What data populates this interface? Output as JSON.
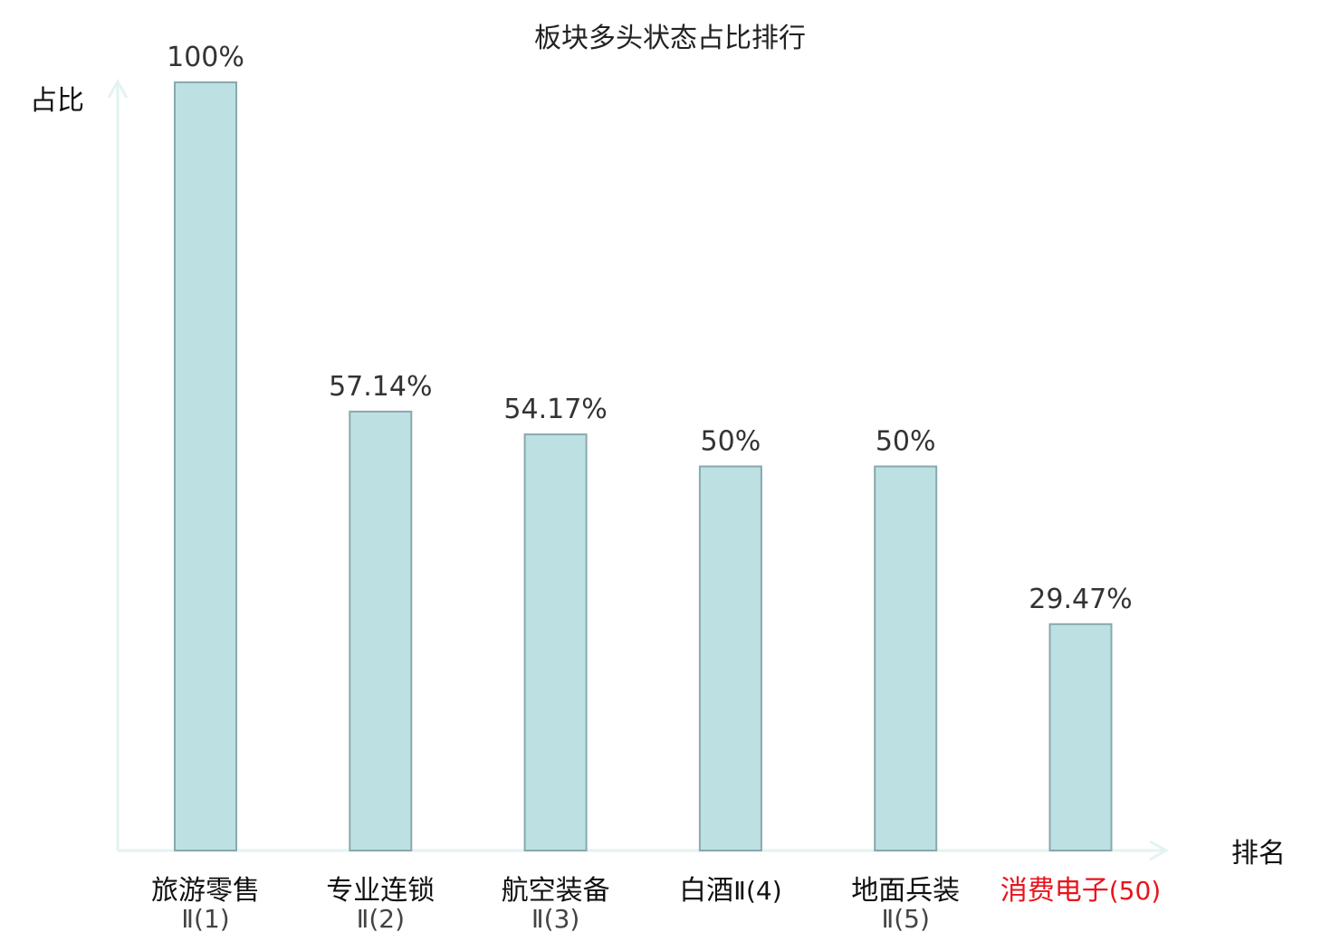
{
  "chart_data": {
    "type": "bar",
    "title": "板块多头状态占比排行",
    "ylabel": "占比",
    "xlabel": "排名",
    "ylim": [
      0,
      100
    ],
    "grid": false,
    "categories": [
      {
        "line1": "旅游零售",
        "line2": "Ⅱ(1)",
        "highlight": false
      },
      {
        "line1": "专业连锁",
        "line2": "Ⅱ(2)",
        "highlight": false
      },
      {
        "line1": "航空装备",
        "line2": "Ⅱ(3)",
        "highlight": false
      },
      {
        "line1": "白酒",
        "line2": "Ⅱ(4)",
        "highlight": false
      },
      {
        "line1": "地面兵装",
        "line2": "Ⅱ(5)",
        "highlight": false
      },
      {
        "line1": "消费电子",
        "line2": "(50)",
        "highlight": true
      }
    ],
    "values": [
      100,
      57.14,
      54.17,
      50,
      50,
      29.47
    ],
    "value_labels": [
      "100%",
      "57.14%",
      "54.17%",
      "50%",
      "50%",
      "29.47%"
    ],
    "colors": {
      "bar_fill": "#bde0e3",
      "bar_stroke": "#88a9ad",
      "axis": "#e3f3f1",
      "highlight_text": "#e8141c"
    }
  }
}
